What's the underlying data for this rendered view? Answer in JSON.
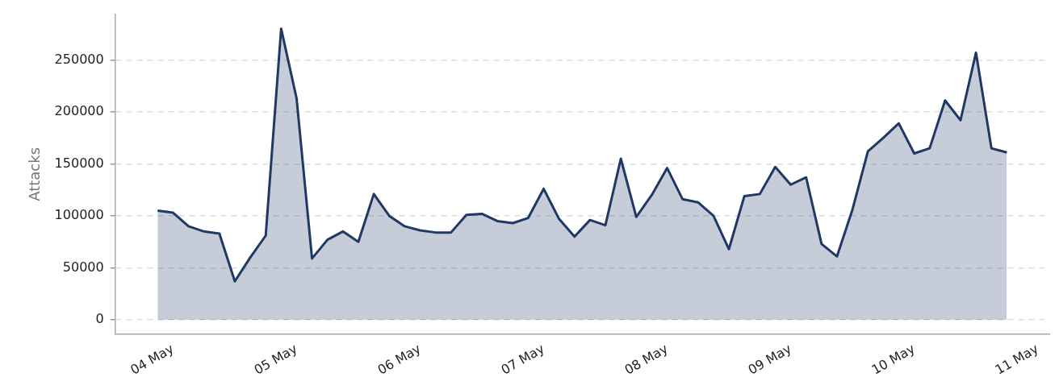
{
  "chart_data": {
    "type": "area",
    "ylabel": "Attacks",
    "x": [
      "--05-03T21:00",
      "--05-04T00:00",
      "--05-04T03:00",
      "--05-04T06:00",
      "--05-04T09:00",
      "--05-04T12:00",
      "--05-04T15:00",
      "--05-04T18:00",
      "--05-04T21:00",
      "--05-05T00:00",
      "--05-05T03:00",
      "--05-05T06:00",
      "--05-05T09:00",
      "--05-05T12:00",
      "--05-05T15:00",
      "--05-05T18:00",
      "--05-05T21:00",
      "--05-06T00:00",
      "--05-06T03:00",
      "--05-06T06:00",
      "--05-06T09:00",
      "--05-06T12:00",
      "--05-06T15:00",
      "--05-06T18:00",
      "--05-06T21:00",
      "--05-07T00:00",
      "--05-07T03:00",
      "--05-07T06:00",
      "--05-07T09:00",
      "--05-07T12:00",
      "--05-07T15:00",
      "--05-07T18:00",
      "--05-07T21:00",
      "--05-08T00:00",
      "--05-08T03:00",
      "--05-08T06:00",
      "--05-08T09:00",
      "--05-08T12:00",
      "--05-08T15:00",
      "--05-08T18:00",
      "--05-08T21:00",
      "--05-09T00:00",
      "--05-09T03:00",
      "--05-09T06:00",
      "--05-09T09:00",
      "--05-09T12:00",
      "--05-09T15:00",
      "--05-09T18:00",
      "--05-09T21:00",
      "--05-10T00:00",
      "--05-10T03:00",
      "--05-10T06:00",
      "--05-10T09:00",
      "--05-10T12:00",
      "--05-10T15:00",
      "--05-10T18:00"
    ],
    "series": [
      {
        "color": "#1f3864",
        "values": [
          105000,
          103000,
          90000,
          85000,
          83000,
          37000,
          60000,
          81000,
          280000,
          213000,
          59000,
          77000,
          85000,
          75000,
          121000,
          100000,
          90000,
          86000,
          84000,
          84000,
          101000,
          102000,
          95000,
          93000,
          98000,
          126000,
          97000,
          80000,
          96000,
          91000,
          155000,
          99000,
          120000,
          146000,
          116000,
          113000,
          100000,
          68000,
          119000,
          121000,
          147000,
          130000,
          137000,
          73000,
          61000,
          106000,
          162000,
          175000,
          189000,
          160000,
          165000,
          211000,
          192000,
          257000,
          165000,
          161000
        ]
      }
    ],
    "xlim": [
      "--05-03T12:45",
      "--05-11T02:15"
    ],
    "xticks": [
      {
        "value": "--05-04",
        "label": "04 May"
      },
      {
        "value": "--05-05",
        "label": "05 May"
      },
      {
        "value": "--05-06",
        "label": "06 May"
      },
      {
        "value": "--05-07",
        "label": "07 May"
      },
      {
        "value": "--05-08",
        "label": "08 May"
      },
      {
        "value": "--05-09",
        "label": "09 May"
      },
      {
        "value": "--05-10",
        "label": "10 May"
      },
      {
        "value": "--05-11",
        "label": "11 May"
      }
    ],
    "ylim": [
      -14000,
      294000
    ],
    "yticks": [
      0,
      50000,
      100000,
      150000,
      200000,
      250000
    ],
    "grid": "y",
    "legend": false,
    "line_style": "solid",
    "marker": "none"
  }
}
